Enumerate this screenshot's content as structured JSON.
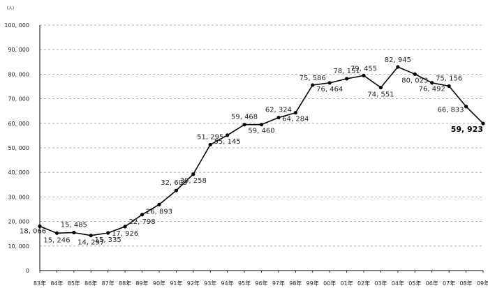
{
  "chart_data": {
    "type": "line",
    "title": "",
    "unit_label": "（人）",
    "xlabel": "",
    "ylabel": "",
    "ylim": [
      0,
      100000
    ],
    "yticks": [
      "0",
      "10, 000",
      "20, 000",
      "30, 000",
      "40, 000",
      "50, 000",
      "60, 000",
      "70, 000",
      "80, 000",
      "90, 000",
      "100, 000"
    ],
    "grid": true,
    "categories": [
      "83年",
      "84年",
      "85年",
      "86年",
      "87年",
      "88年",
      "89年",
      "90年",
      "91年",
      "92年",
      "93年",
      "94年",
      "95年",
      "96年",
      "97年",
      "98年",
      "99年",
      "00年",
      "01年",
      "02年",
      "03年",
      "04年",
      "05年",
      "06年",
      "07年",
      "08年",
      "09年"
    ],
    "series": [
      {
        "values": [
          18066,
          15246,
          15485,
          14297,
          15335,
          17926,
          22798,
          26893,
          32609,
          39258,
          51295,
          55145,
          59468,
          59460,
          62324,
          64284,
          75586,
          76464,
          78151,
          79455,
          74551,
          82945,
          80023,
          76492,
          75156,
          66833,
          59923
        ],
        "labels": [
          "18, 066",
          "15, 246",
          "15, 485",
          "14, 297",
          "15, 335",
          "17, 926",
          "22, 798",
          "26, 893",
          "32, 609",
          "39, 258",
          "51, 295",
          "55, 145",
          "59, 468",
          "59, 460",
          "62, 324",
          "64, 284",
          "75, 586",
          "76, 464",
          "78, 151",
          "79, 455",
          "74, 551",
          "82, 945",
          "80, 023",
          "76, 492",
          "75, 156",
          "66, 833",
          "59, 923"
        ]
      }
    ],
    "line_color": "#000000",
    "grid_color": "#9a9a9a"
  }
}
